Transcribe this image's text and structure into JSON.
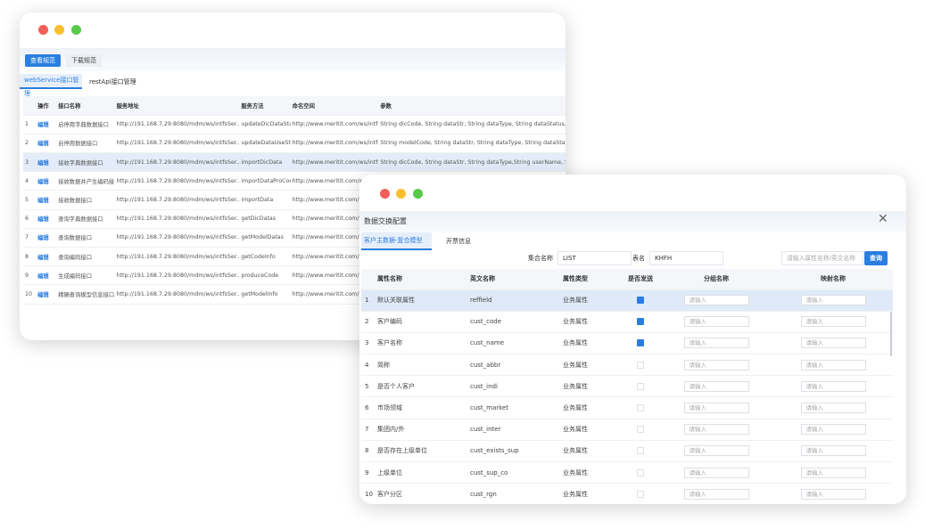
{
  "back_window": {
    "toolbar": {
      "view_label": "查看规范",
      "download_label": "下载规范"
    },
    "tabs": [
      "webService接口管理",
      "restApi接口管理"
    ],
    "columns": [
      "",
      "操作",
      "接口名称",
      "服务地址",
      "服务方法",
      "命名空间",
      "参数"
    ],
    "edit_label": "编辑",
    "rows": [
      {
        "n": "1",
        "name": "启停用字典数据接口",
        "url": "http://191.168.7.29:8080/mdm/ws/intfsSer...",
        "method": "updateDicDataSta",
        "ns": "http://www.meritit.com/ws/intfs",
        "params": "String dicCode, String dataStr, String dataType, String dataStatus, String"
      },
      {
        "n": "2",
        "name": "启停用数据接口",
        "url": "http://191.168.7.29:8080/mdm/ws/intfsSer...",
        "method": "updateDataUseSta",
        "ns": "http://www.meritit.com/ws/intfs",
        "params": "String modelCode, String dataStr, String dataType, String dataStatus, St"
      },
      {
        "n": "3",
        "name": "接收字典数据接口",
        "url": "http://191.168.7.29:8080/mdm/ws/intfsSer...",
        "method": "importDicData",
        "ns": "http://www.meritit.com/ws/intfs",
        "params": "String dicCode, String dataStr, String dataType,String userName, String"
      },
      {
        "n": "4",
        "name": "接收数据并产生编码接",
        "url": "http://191.168.7.29:8080/mdm/ws/intfsSer...",
        "method": "importDataProCod",
        "ns": "http://www.meritit.com/ws/intfs",
        "params": ""
      },
      {
        "n": "5",
        "name": "接收数据接口",
        "url": "http://191.168.7.29:8080/mdm/ws/intfsSer...",
        "method": "importData",
        "ns": "http://www.meritit.com/ws/intfs",
        "params": ""
      },
      {
        "n": "6",
        "name": "查询字典数据接口",
        "url": "http://191.168.7.29:8080/mdm/ws/intfsSer...",
        "method": "getDicDatas",
        "ns": "http://www.meritit.com/ws/intfs",
        "params": ""
      },
      {
        "n": "7",
        "name": "查询数据接口",
        "url": "http://191.168.7.29:8080/mdm/ws/intfsSer...",
        "method": "getModelDatas",
        "ns": "http://www.meritit.com/ws/intfs",
        "params": ""
      },
      {
        "n": "8",
        "name": "查询编码接口",
        "url": "http://191.168.7.29:8080/mdm/ws/intfsSer...",
        "method": "getCodeInfo",
        "ns": "http://www.meritit.com/ws/intfs",
        "params": ""
      },
      {
        "n": "9",
        "name": "生成编码接口",
        "url": "http://191.168.7.29:8080/mdm/ws/intfsSer...",
        "method": "produceCode",
        "ns": "http://www.meritit.com/ws/intfs",
        "params": ""
      },
      {
        "n": "10",
        "name": "精确查询模型信息接口",
        "url": "http://191.168.7.29:8080/mdm/ws/intfsSer...",
        "method": "getModelInfo",
        "ns": "http://www.meritit.com/ws/intfs",
        "params": ""
      }
    ]
  },
  "dialog": {
    "title": "数据交换配置",
    "tabs": [
      "客户主数据-复合模型",
      "开票信息"
    ],
    "filters": {
      "set_label": "集合名称",
      "set_value": "LIST",
      "table_label": "表名",
      "table_value": "KHFH",
      "search_placeholder": "请输入属性名称/英文名称",
      "query_label": "查询"
    },
    "columns": [
      "",
      "属性名称",
      "英文名称",
      "属性类型",
      "是否发送",
      "分组名称",
      "映射名称"
    ],
    "input_placeholder": "请输入",
    "rows": [
      {
        "n": "1",
        "name": "默认关联属性",
        "en": "reffield",
        "type": "业务属性",
        "send": true
      },
      {
        "n": "2",
        "name": "客户编码",
        "en": "cust_code",
        "type": "业务属性",
        "send": true
      },
      {
        "n": "3",
        "name": "客户名称",
        "en": "cust_name",
        "type": "业务属性",
        "send": true
      },
      {
        "n": "4",
        "name": "简称",
        "en": "cust_abbr",
        "type": "业务属性",
        "send": false
      },
      {
        "n": "5",
        "name": "是否个人客户",
        "en": "cust_indi",
        "type": "业务属性",
        "send": false
      },
      {
        "n": "6",
        "name": "市场领域",
        "en": "cust_market",
        "type": "业务属性",
        "send": false
      },
      {
        "n": "7",
        "name": "集团内/外",
        "en": "cust_inter",
        "type": "业务属性",
        "send": false
      },
      {
        "n": "8",
        "name": "是否存在上级单位",
        "en": "cust_exists_sup",
        "type": "业务属性",
        "send": false
      },
      {
        "n": "9",
        "name": "上级单位",
        "en": "cust_sup_co",
        "type": "业务属性",
        "send": false
      },
      {
        "n": "10",
        "name": "客户分区",
        "en": "cust_rgn",
        "type": "业务属性",
        "send": false
      }
    ]
  },
  "colors": {
    "accent": "#2a7ee0",
    "close": "#f25f58",
    "minimize": "#fbbe2e",
    "maximize": "#58c94a"
  }
}
